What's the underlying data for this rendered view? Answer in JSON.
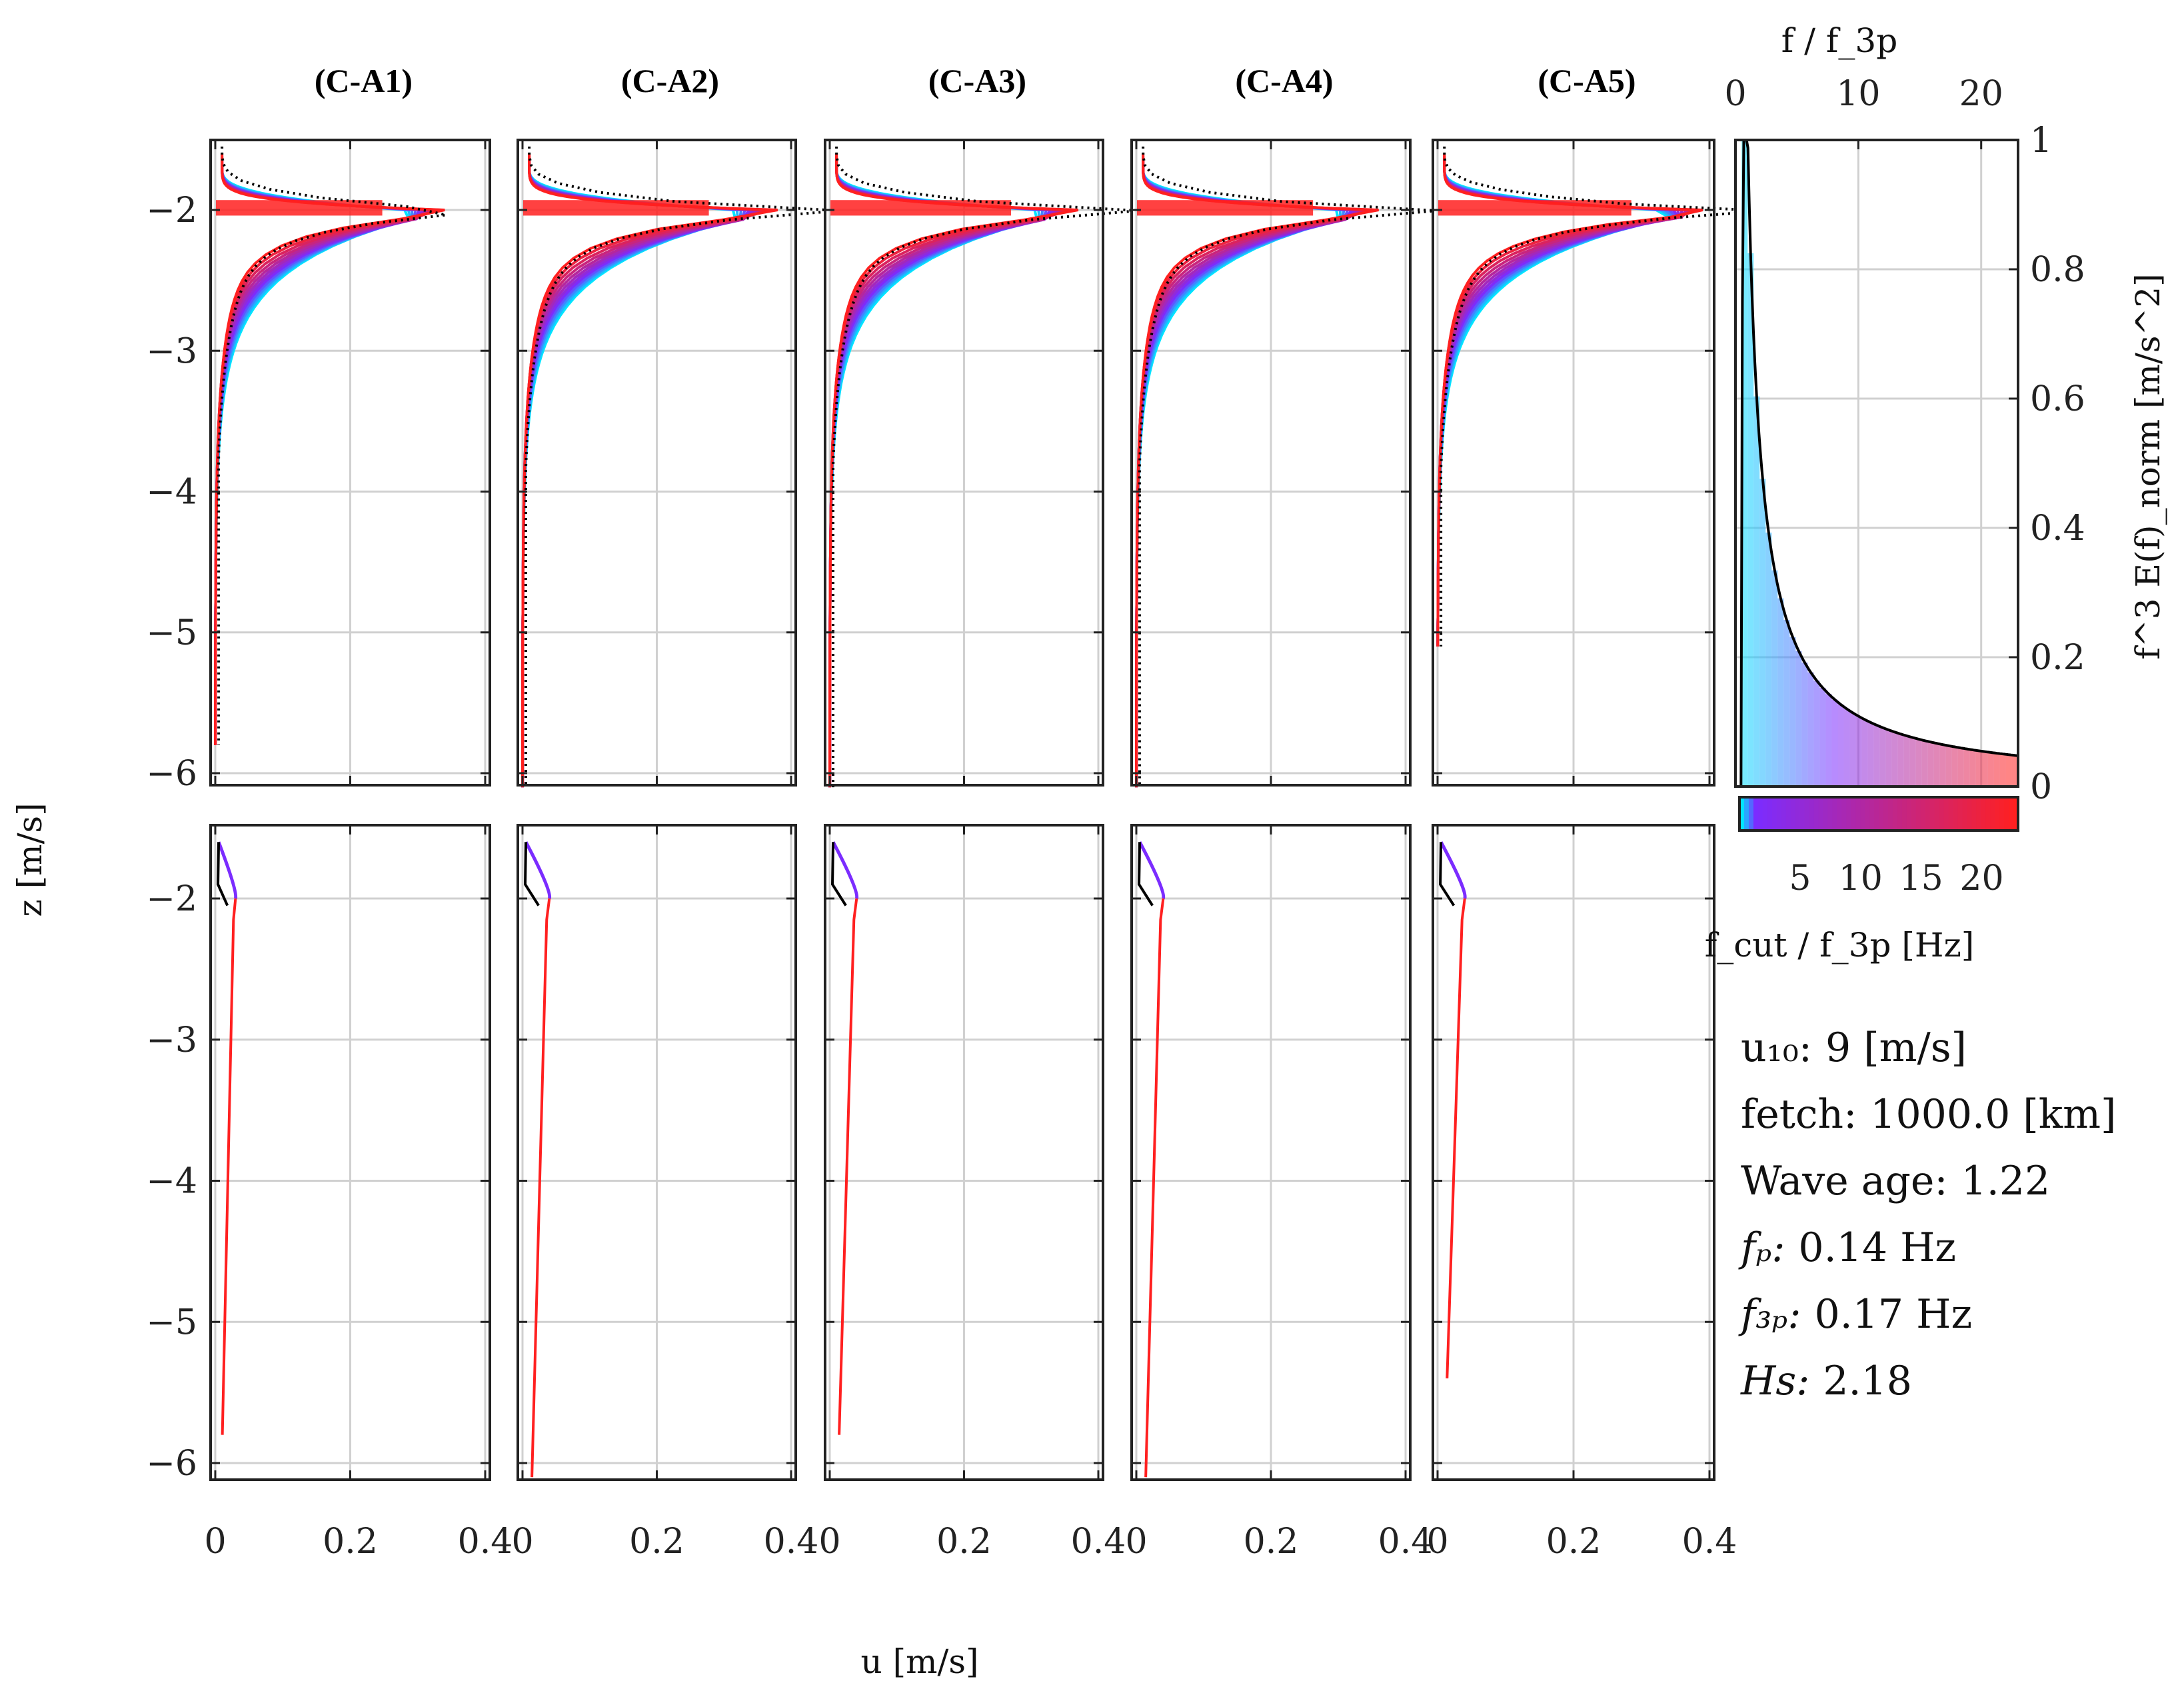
{
  "panel_titles": [
    "(C-A1)",
    "(C-A2)",
    "(C-A3)",
    "(C-A4)",
    "(C-A5)"
  ],
  "axis_labels": {
    "y": "z [m/s]",
    "x": "u [m/s]",
    "spectrum_top": "f / f_3p",
    "spectrum_right": "f^3 E(f)_norm [m/s^2]",
    "colorbar": "f_cut / f_3p [Hz]"
  },
  "ticks": {
    "y": [
      "−2",
      "−3",
      "−4",
      "−5",
      "−6"
    ],
    "x": [
      "0",
      "0.2",
      "0.4"
    ],
    "spectrum_top": [
      "0",
      "10",
      "20"
    ],
    "spectrum_right": [
      "1",
      "0.8",
      "0.6",
      "0.4",
      "0.2",
      "0"
    ],
    "colorbar": [
      "5",
      "10",
      "15",
      "20"
    ]
  },
  "info": {
    "u10_label": "u₁₀:",
    "u10_value": "9 [m/s]",
    "fetch_label": "fetch:",
    "fetch_value": "1000.0 [km]",
    "wave_age_label": "Wave age:",
    "wave_age_value": "1.22",
    "fp_label": "fₚ:",
    "fp_value": "0.14 Hz",
    "f3p_label": "f₃ₚ:",
    "f3p_value": "0.17 Hz",
    "hs_label": "Hs:",
    "hs_value": "2.18"
  },
  "colors": {
    "low_freq": "#00e5ff",
    "mid_freq": "#7b2cff",
    "high_freq": "#ff2020",
    "reference": "#000000",
    "grid": "#d0d0d0"
  },
  "chart_data": {
    "type": "line",
    "layout": "2 rows x 5 columns of velocity profiles plus a spectrum panel",
    "xlim": [
      0,
      0.4
    ],
    "ylim": [
      -6.1,
      -1.5
    ],
    "top_row": {
      "description": "Stokes drift velocity profiles u(z) for increasing cutoff frequency",
      "peak_depth": -2.0,
      "peak_u": [
        0.33,
        0.37,
        0.36,
        0.35,
        0.38
      ],
      "profile_bottom_depth": [
        -5.8,
        -6.1,
        -6.1,
        -6.1,
        -5.1
      ],
      "cut_ratios": [
        1,
        1.5,
        2,
        3,
        5,
        8,
        12,
        16,
        22
      ]
    },
    "bottom_row": {
      "description": "Residual velocity profiles (small magnitude)",
      "surface_u": [
        0.03,
        0.04,
        0.04,
        0.04,
        0.04
      ],
      "profile_bottom_depth": [
        -5.8,
        -6.1,
        -5.8,
        -6.1,
        -5.4
      ]
    },
    "spectrum": {
      "type": "area",
      "x_label": "f / f_3p",
      "y_label": "f^3 E(f)_norm [m/s^2]",
      "xlim": [
        0,
        23
      ],
      "ylim": [
        0,
        1
      ],
      "peak_x": 1.0,
      "peak_y": 1.0,
      "tail": [
        [
          1,
          1.0
        ],
        [
          2,
          0.56
        ],
        [
          3,
          0.37
        ],
        [
          5,
          0.21
        ],
        [
          10,
          0.1
        ],
        [
          15,
          0.065
        ],
        [
          20,
          0.045
        ],
        [
          23,
          0.038
        ]
      ]
    },
    "colorbar": {
      "label": "f_cut / f_3p [Hz]",
      "range": [
        0,
        23
      ]
    }
  }
}
